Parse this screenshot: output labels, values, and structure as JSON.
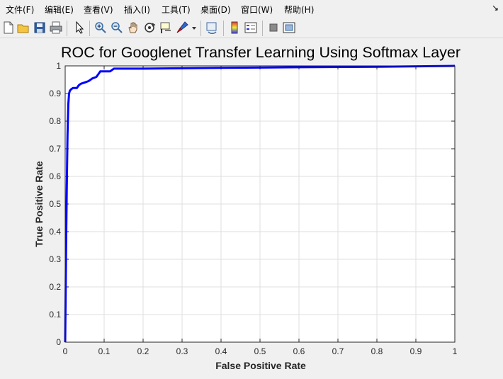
{
  "menu": {
    "items": [
      "文件(F)",
      "编辑(E)",
      "查看(V)",
      "插入(I)",
      "工具(T)",
      "桌面(D)",
      "窗口(W)",
      "帮助(H)"
    ],
    "dock_arrow": "↘"
  },
  "toolbar": {
    "buttons": [
      "new-figure-icon",
      "open-file-icon",
      "save-icon",
      "print-icon",
      "pointer-icon",
      "zoom-in-icon",
      "zoom-out-icon",
      "pan-hand-icon",
      "rotate-3d-icon",
      "data-cursor-icon",
      "brush-icon",
      "brush-dropdown-icon",
      "link-plot-icon",
      "colorbar-icon",
      "legend-icon",
      "hide-plot-tools-icon",
      "show-plot-tools-icon"
    ]
  },
  "chart_data": {
    "type": "line",
    "title": "ROC for Googlenet Transfer Learning Using Softmax Layer",
    "xlabel": "False Positive Rate",
    "ylabel": "True Positive Rate",
    "xlim": [
      0,
      1
    ],
    "ylim": [
      0,
      1
    ],
    "xticks": [
      "0",
      "0.1",
      "0.2",
      "0.3",
      "0.4",
      "0.5",
      "0.6",
      "0.7",
      "0.8",
      "0.9",
      "1"
    ],
    "yticks": [
      "0",
      "0.1",
      "0.2",
      "0.3",
      "0.4",
      "0.5",
      "0.6",
      "0.7",
      "0.8",
      "0.9",
      "1"
    ],
    "grid": true,
    "series": [
      {
        "color": "#0000ff",
        "x": [
          0,
          0.002,
          0.004,
          0.006,
          0.008,
          0.01,
          0.012,
          0.015,
          0.02,
          0.03,
          0.035,
          0.04,
          0.05,
          0.06,
          0.065,
          0.07,
          0.08,
          0.085,
          0.09,
          0.1,
          0.115,
          0.125,
          0.13,
          0.2,
          0.4,
          0.6,
          0.8,
          1.0
        ],
        "y": [
          0,
          0.3,
          0.55,
          0.75,
          0.86,
          0.9,
          0.91,
          0.915,
          0.92,
          0.92,
          0.93,
          0.935,
          0.94,
          0.945,
          0.95,
          0.955,
          0.96,
          0.97,
          0.98,
          0.98,
          0.98,
          0.99,
          0.99,
          0.99,
          0.993,
          0.995,
          0.997,
          1.0
        ]
      }
    ]
  }
}
